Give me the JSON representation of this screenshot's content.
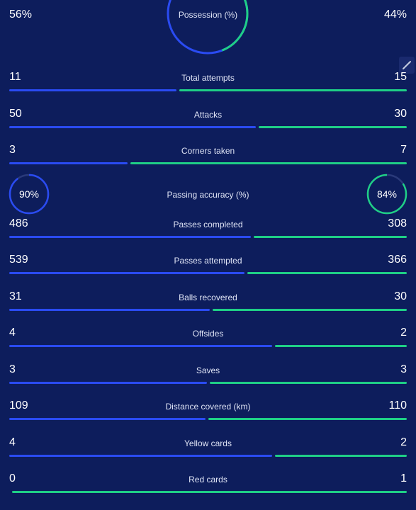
{
  "possession": {
    "label": "Possession (%)",
    "home": "56%",
    "away": "44%",
    "home_value": 56,
    "away_value": 44
  },
  "colors": {
    "home": "#2a4bf2",
    "away": "#1fcf86",
    "background": "#0d1d5c"
  },
  "stats": [
    {
      "label": "Total attempts",
      "home": "11",
      "away": "15"
    },
    {
      "label": "Attacks",
      "home": "50",
      "away": "30"
    },
    {
      "label": "Corners taken",
      "home": "3",
      "away": "7"
    },
    {
      "type": "accuracy",
      "label": "Passing accuracy (%)",
      "home": "90%",
      "away": "84%",
      "home_value": 90,
      "away_value": 84
    },
    {
      "label": "Passes completed",
      "home": "486",
      "away": "308"
    },
    {
      "label": "Passes attempted",
      "home": "539",
      "away": "366"
    },
    {
      "label": "Balls recovered",
      "home": "31",
      "away": "30"
    },
    {
      "label": "Offsides",
      "home": "4",
      "away": "2"
    },
    {
      "label": "Saves",
      "home": "3",
      "away": "3"
    },
    {
      "label": "Distance covered (km)",
      "home": "109",
      "away": "110"
    },
    {
      "label": "Yellow cards",
      "home": "4",
      "away": "2"
    },
    {
      "label": "Red cards",
      "home": "0",
      "away": "1"
    }
  ],
  "icons": {
    "edit": "pencil-icon"
  }
}
